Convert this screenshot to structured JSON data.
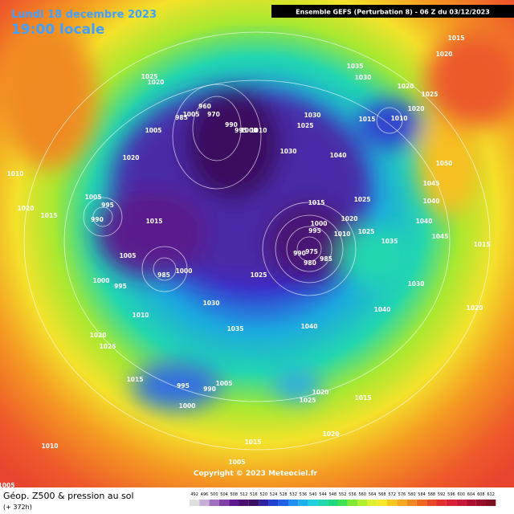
{
  "header": {
    "date": "Lundi 18 decembre 2023",
    "time": "19:00 locale",
    "banner": "Ensemble GEFS  (Perturbation 8)  - 06 Z du 03/12/2023"
  },
  "footer": {
    "title": "Géop. Z500 & pression au sol",
    "subtitle": "(+ 372h)",
    "copyright": "Copyright © 2023 Meteociel.fr"
  },
  "colorbar": {
    "ticks": [
      492,
      496,
      500,
      504,
      508,
      512,
      516,
      520,
      524,
      528,
      532,
      536,
      540,
      544,
      548,
      552,
      556,
      560,
      564,
      568,
      572,
      576,
      580,
      584,
      588,
      592,
      596,
      600,
      604,
      608,
      612
    ]
  },
  "isobar_labels": [
    "1015",
    "1020",
    "1035",
    "1030",
    "1025",
    "1020",
    "1020",
    "1025",
    "1020",
    "960",
    "985",
    "1005",
    "970",
    "1030",
    "1025",
    "990",
    "995",
    "1000",
    "1010",
    "1005",
    "1020",
    "1030",
    "1040",
    "1050",
    "1010",
    "1005",
    "995",
    "990",
    "1015",
    "1025",
    "1015",
    "1045",
    "1040",
    "1040",
    "1020",
    "1015",
    "1000",
    "995",
    "1020",
    "1010",
    "1025",
    "1035",
    "1045",
    "1015",
    "1005",
    "990",
    "975",
    "985",
    "980",
    "985",
    "1000",
    "1025",
    "1000",
    "995",
    "1030",
    "1010",
    "1030",
    "1040",
    "1020",
    "1035",
    "1040",
    "1020",
    "1025",
    "1015",
    "995",
    "990",
    "1005",
    "1020",
    "1025",
    "1015",
    "1000",
    "1020",
    "1010",
    "1015",
    "1005",
    "1005",
    "1010",
    "1015"
  ]
}
